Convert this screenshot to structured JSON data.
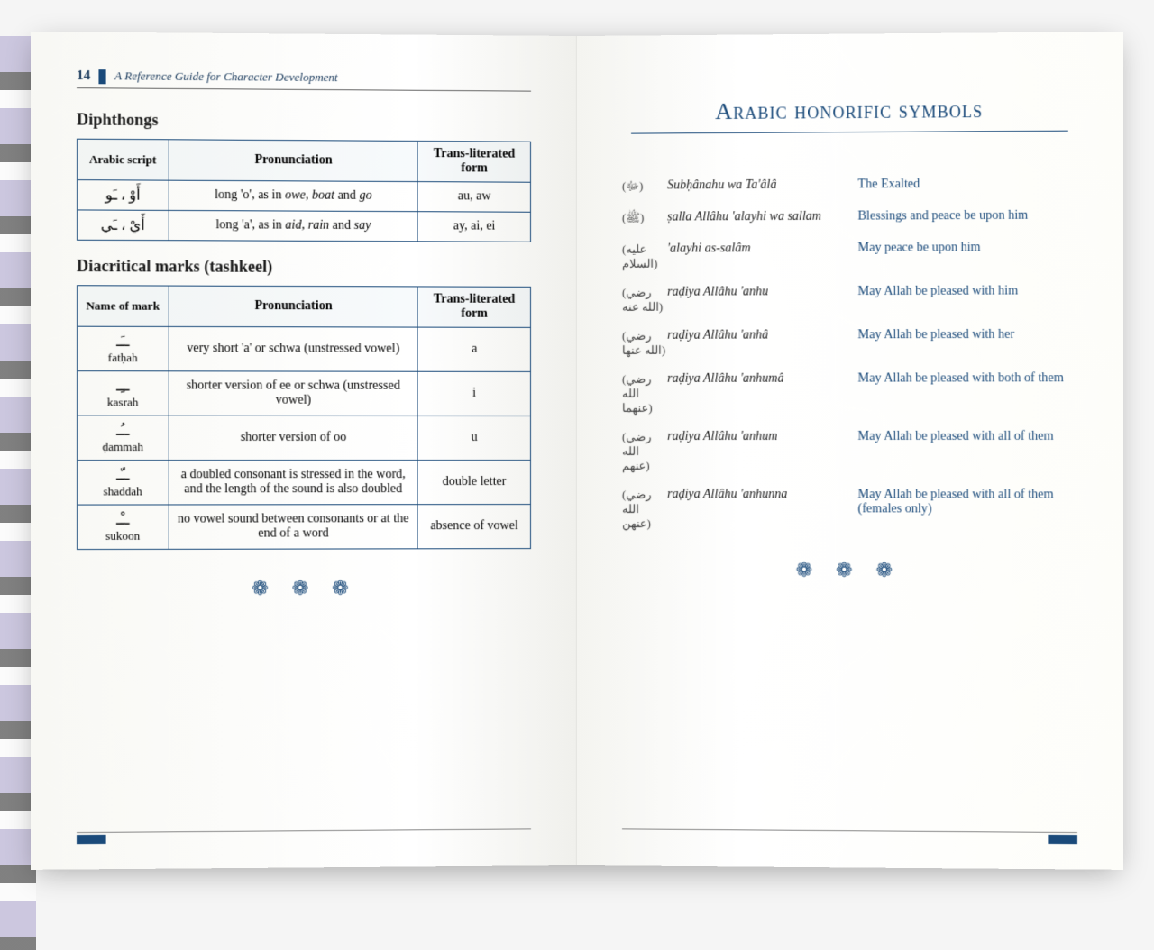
{
  "left": {
    "pageNumber": "14",
    "runningHead": "A Reference Guide for Character Development",
    "section1": {
      "title": "Diphthongs",
      "headers": [
        "Arabic script",
        "Pronunciation",
        "Trans-literated form"
      ],
      "rows": [
        {
          "script": "أَوْ ، ـَو",
          "pron": "long 'o', as in <i>owe</i>, <i>boat</i> and <i>go</i>",
          "form": "au, aw"
        },
        {
          "script": "أَيْ ، ـَي",
          "pron": "long 'a', as in <i>aid</i>, <i>rain</i> and <i>say</i>",
          "form": "ay, ai, ei"
        }
      ]
    },
    "section2": {
      "title": "Diacritical marks (tashkeel)",
      "headers": [
        "Name of mark",
        "Pronunciation",
        "Trans-literated form"
      ],
      "rows": [
        {
          "name": "fatḥah",
          "mark": "ــَـ",
          "pron": "very short 'a' or schwa (unstressed vowel)",
          "form": "a"
        },
        {
          "name": "kasrah",
          "mark": "ــِـ",
          "pron": "shorter version of ee or schwa (unstressed vowel)",
          "form": "i"
        },
        {
          "name": "ḍammah",
          "mark": "ــُـ",
          "pron": "shorter version of oo",
          "form": "u"
        },
        {
          "name": "shaddah",
          "mark": "ــّـ",
          "pron": "a doubled consonant is stressed in the word, and the length of the sound is also doubled",
          "form": "double letter"
        },
        {
          "name": "sukoon",
          "mark": "ــْـ",
          "pron": "no vowel sound between consonants or at the end of a word",
          "form": "absence of vowel"
        }
      ]
    }
  },
  "right": {
    "title": "Arabic honorific symbols",
    "items": [
      {
        "symbol": "(ﷻ)",
        "translit": "Subḥânahu wa Ta'âlâ",
        "meaning": "The Exalted"
      },
      {
        "symbol": "(ﷺ)",
        "translit": "ṣalla Allâhu 'alayhi wa sallam",
        "meaning": "Blessings and peace be upon him"
      },
      {
        "symbol": "(عليه السلام)",
        "translit": "'alayhi as-salâm",
        "meaning": "May peace be upon him"
      },
      {
        "symbol": "(رضي الله عنه)",
        "translit": "raḍiya Allâhu 'anhu",
        "meaning": "May Allah be pleased with him"
      },
      {
        "symbol": "(رضي الله عنها)",
        "translit": "raḍiya Allâhu 'anhâ",
        "meaning": "May Allah be pleased with her"
      },
      {
        "symbol": "(رضي الله عنهما)",
        "translit": "raḍiya Allâhu 'anhumâ",
        "meaning": "May Allah be pleased with both of them"
      },
      {
        "symbol": "(رضي الله عنهم)",
        "translit": "raḍiya Allâhu 'anhum",
        "meaning": "May Allah be pleased with all of them"
      },
      {
        "symbol": "(رضي الله عنهن)",
        "translit": "raḍiya Allâhu 'anhunna",
        "meaning": "May Allah be pleased with all of them (females only)"
      }
    ]
  },
  "ornament": "❁ ❁ ❁",
  "colors": {
    "accent": "#1a4a7a",
    "text": "#1a1a1a",
    "paper": "#fefefc"
  }
}
